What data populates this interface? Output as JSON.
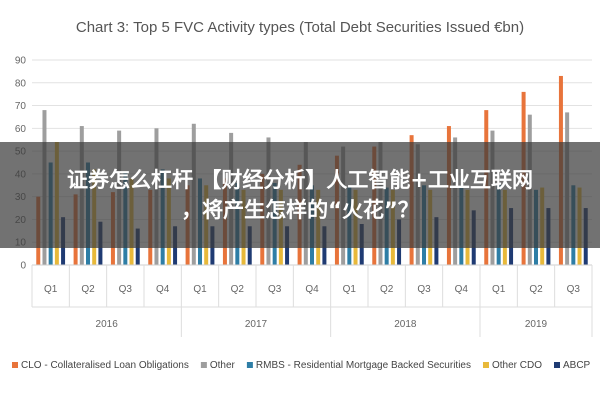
{
  "chart_data": {
    "type": "bar",
    "title": "Chart 3: Top 5 FVC Activity types (Total Debt Securities Issued €bn)",
    "ylim": [
      0,
      90
    ],
    "yticks": [
      "0",
      "10",
      "20",
      "30",
      "40",
      "50",
      "60",
      "70",
      "80",
      "90"
    ],
    "categories": [
      "Q1",
      "Q2",
      "Q3",
      "Q4",
      "Q1",
      "Q2",
      "Q3",
      "Q4",
      "Q1",
      "Q2",
      "Q3",
      "Q4",
      "Q1",
      "Q2",
      "Q3"
    ],
    "years": [
      "2016",
      "2017",
      "2018",
      "2019"
    ],
    "grid": true,
    "legend_position": "bottom",
    "series": [
      {
        "name": "CLO - Collateralised Loan Obligations",
        "color": "#e8743b",
        "values": [
          30,
          31,
          32,
          33,
          35,
          38,
          40,
          44,
          48,
          52,
          57,
          61,
          68,
          76,
          83
        ]
      },
      {
        "name": "Other",
        "color": "#9e9e9e",
        "values": [
          68,
          61,
          59,
          60,
          62,
          58,
          56,
          54,
          52,
          54,
          53,
          56,
          59,
          66,
          67
        ]
      },
      {
        "name": "RMBS - Residential Mortgage Backed Securities",
        "color": "#2e7ea6",
        "values": [
          45,
          45,
          41,
          42,
          38,
          36,
          36,
          35,
          34,
          34,
          35,
          34,
          36,
          33,
          35
        ]
      },
      {
        "name": "Other CDO",
        "color": "#e8b93a",
        "values": [
          54,
          42,
          38,
          38,
          35,
          33,
          33,
          33,
          33,
          33,
          33,
          33,
          33,
          34,
          34
        ]
      },
      {
        "name": "ABCP",
        "color": "#1f3b73",
        "values": [
          21,
          19,
          16,
          17,
          17,
          17,
          17,
          17,
          18,
          20,
          21,
          24,
          25,
          25,
          25
        ]
      }
    ]
  },
  "overlay": {
    "line1": "证券怎么杠杆 【财经分析】人工智能+工业互联网",
    "line2": "，将产生怎样的“火花”？"
  }
}
